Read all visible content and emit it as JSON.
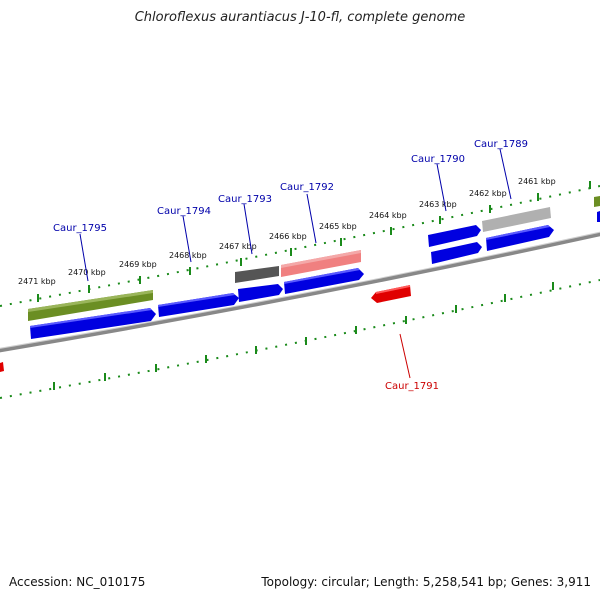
{
  "title": "Chloroflexus aurantiacus J-10-fl, complete genome",
  "footer": {
    "accession": "Accession: NC_010175",
    "summary": "Topology: circular; Length: 5,258,541 bp; Genes: 3,911"
  },
  "colors": {
    "forward": "#0000e0",
    "reverse": "#e00000",
    "cog_green": "#6b8e23",
    "cog_dark": "#555555",
    "cog_pink": "#f08080",
    "cog_light": "#b0b0b0",
    "ruler": "#1a8a1a",
    "backbone": "#888888",
    "label_forward": "#0000aa",
    "label_reverse": "#cc0000"
  },
  "kbp_ticks": [
    "2471 kbp",
    "2470 kbp",
    "2469 kbp",
    "2468 kbp",
    "2467 kbp",
    "2466 kbp",
    "2465 kbp",
    "2464 kbp",
    "2463 kbp",
    "2462 kbp",
    "2461 kbp"
  ],
  "gene_labels": [
    "Caur_1795",
    "Caur_1794",
    "Caur_1793",
    "Caur_1792",
    "Caur_1790",
    "Caur_1789",
    "Caur_1791"
  ]
}
